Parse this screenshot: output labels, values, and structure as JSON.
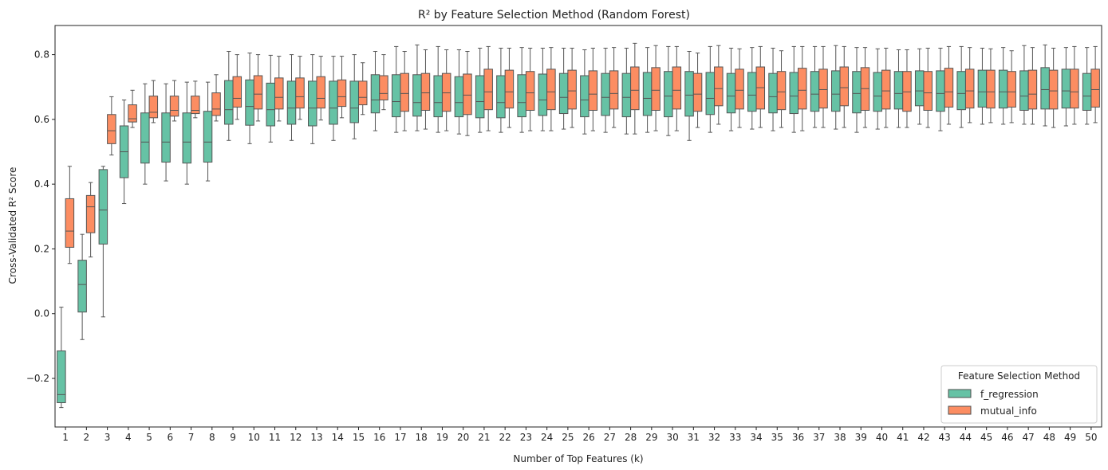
{
  "chart_data": {
    "type": "box",
    "title": "R² by Feature Selection Method (Random Forest)",
    "xlabel": "Number of Top Features (k)",
    "ylabel": "Cross-Validated R² Score",
    "ylim": [
      -0.35,
      0.89
    ],
    "yticks": [
      "−0.2",
      "0.0",
      "0.2",
      "0.4",
      "0.6",
      "0.8"
    ],
    "ytick_values": [
      -0.2,
      0.0,
      0.2,
      0.4,
      0.6,
      0.8
    ],
    "categories": [
      "1",
      "2",
      "3",
      "4",
      "5",
      "6",
      "7",
      "8",
      "9",
      "10",
      "11",
      "12",
      "13",
      "14",
      "15",
      "16",
      "17",
      "18",
      "19",
      "20",
      "21",
      "22",
      "23",
      "24",
      "25",
      "26",
      "27",
      "28",
      "29",
      "30",
      "31",
      "32",
      "33",
      "34",
      "35",
      "36",
      "37",
      "38",
      "39",
      "40",
      "41",
      "42",
      "43",
      "44",
      "45",
      "46",
      "47",
      "48",
      "49",
      "50"
    ],
    "grid": false,
    "legend": {
      "title": "Feature Selection Method",
      "placement": "lower-right"
    },
    "series": [
      {
        "name": "f_regression",
        "color": "#66c2a5",
        "boxes": [
          {
            "whislo": -0.29,
            "q1": -0.275,
            "med": -0.25,
            "q3": -0.115,
            "whishi": 0.02
          },
          {
            "whislo": -0.08,
            "q1": 0.005,
            "med": 0.09,
            "q3": 0.165,
            "whishi": 0.245
          },
          {
            "whislo": -0.01,
            "q1": 0.215,
            "med": 0.32,
            "q3": 0.445,
            "whishi": 0.455
          },
          {
            "whislo": 0.34,
            "q1": 0.42,
            "med": 0.5,
            "q3": 0.58,
            "whishi": 0.66
          },
          {
            "whislo": 0.4,
            "q1": 0.465,
            "med": 0.53,
            "q3": 0.62,
            "whishi": 0.71
          },
          {
            "whislo": 0.41,
            "q1": 0.468,
            "med": 0.53,
            "q3": 0.62,
            "whishi": 0.71
          },
          {
            "whislo": 0.4,
            "q1": 0.465,
            "med": 0.53,
            "q3": 0.62,
            "whishi": 0.715
          },
          {
            "whislo": 0.41,
            "q1": 0.468,
            "med": 0.53,
            "q3": 0.625,
            "whishi": 0.715
          },
          {
            "whislo": 0.535,
            "q1": 0.585,
            "med": 0.63,
            "q3": 0.72,
            "whishi": 0.81
          },
          {
            "whislo": 0.525,
            "q1": 0.582,
            "med": 0.64,
            "q3": 0.722,
            "whishi": 0.805
          },
          {
            "whislo": 0.53,
            "q1": 0.58,
            "med": 0.63,
            "q3": 0.712,
            "whishi": 0.798
          },
          {
            "whislo": 0.535,
            "q1": 0.585,
            "med": 0.635,
            "q3": 0.718,
            "whishi": 0.8
          },
          {
            "whislo": 0.525,
            "q1": 0.58,
            "med": 0.635,
            "q3": 0.718,
            "whishi": 0.8
          },
          {
            "whislo": 0.535,
            "q1": 0.585,
            "med": 0.635,
            "q3": 0.718,
            "whishi": 0.795
          },
          {
            "whislo": 0.54,
            "q1": 0.59,
            "med": 0.635,
            "q3": 0.718,
            "whishi": 0.8
          },
          {
            "whislo": 0.565,
            "q1": 0.62,
            "med": 0.66,
            "q3": 0.738,
            "whishi": 0.81
          },
          {
            "whislo": 0.56,
            "q1": 0.608,
            "med": 0.655,
            "q3": 0.738,
            "whishi": 0.825
          },
          {
            "whislo": 0.565,
            "q1": 0.61,
            "med": 0.652,
            "q3": 0.738,
            "whishi": 0.83
          },
          {
            "whislo": 0.56,
            "q1": 0.608,
            "med": 0.652,
            "q3": 0.735,
            "whishi": 0.825
          },
          {
            "whislo": 0.555,
            "q1": 0.608,
            "med": 0.652,
            "q3": 0.732,
            "whishi": 0.815
          },
          {
            "whislo": 0.56,
            "q1": 0.605,
            "med": 0.655,
            "q3": 0.735,
            "whishi": 0.82
          },
          {
            "whislo": 0.56,
            "q1": 0.605,
            "med": 0.652,
            "q3": 0.735,
            "whishi": 0.82
          },
          {
            "whislo": 0.56,
            "q1": 0.608,
            "med": 0.652,
            "q3": 0.738,
            "whishi": 0.822
          },
          {
            "whislo": 0.565,
            "q1": 0.612,
            "med": 0.66,
            "q3": 0.74,
            "whishi": 0.82
          },
          {
            "whislo": 0.57,
            "q1": 0.618,
            "med": 0.668,
            "q3": 0.742,
            "whishi": 0.82
          },
          {
            "whislo": 0.555,
            "q1": 0.608,
            "med": 0.66,
            "q3": 0.735,
            "whishi": 0.815
          },
          {
            "whislo": 0.56,
            "q1": 0.612,
            "med": 0.668,
            "q3": 0.742,
            "whishi": 0.82
          },
          {
            "whislo": 0.555,
            "q1": 0.608,
            "med": 0.668,
            "q3": 0.742,
            "whishi": 0.82
          },
          {
            "whislo": 0.56,
            "q1": 0.612,
            "med": 0.665,
            "q3": 0.745,
            "whishi": 0.822
          },
          {
            "whislo": 0.55,
            "q1": 0.608,
            "med": 0.672,
            "q3": 0.748,
            "whishi": 0.825
          },
          {
            "whislo": 0.535,
            "q1": 0.61,
            "med": 0.675,
            "q3": 0.748,
            "whishi": 0.81
          },
          {
            "whislo": 0.56,
            "q1": 0.615,
            "med": 0.665,
            "q3": 0.745,
            "whishi": 0.825
          },
          {
            "whislo": 0.565,
            "q1": 0.62,
            "med": 0.672,
            "q3": 0.742,
            "whishi": 0.82
          },
          {
            "whislo": 0.57,
            "q1": 0.625,
            "med": 0.675,
            "q3": 0.745,
            "whishi": 0.822
          },
          {
            "whislo": 0.565,
            "q1": 0.62,
            "med": 0.67,
            "q3": 0.742,
            "whishi": 0.82
          },
          {
            "whislo": 0.56,
            "q1": 0.618,
            "med": 0.672,
            "q3": 0.745,
            "whishi": 0.825
          },
          {
            "whislo": 0.575,
            "q1": 0.625,
            "med": 0.678,
            "q3": 0.748,
            "whishi": 0.825
          },
          {
            "whislo": 0.57,
            "q1": 0.625,
            "med": 0.678,
            "q3": 0.75,
            "whishi": 0.828
          },
          {
            "whislo": 0.56,
            "q1": 0.62,
            "med": 0.68,
            "q3": 0.748,
            "whishi": 0.822
          },
          {
            "whislo": 0.57,
            "q1": 0.625,
            "med": 0.672,
            "q3": 0.745,
            "whishi": 0.818
          },
          {
            "whislo": 0.575,
            "q1": 0.632,
            "med": 0.68,
            "q3": 0.748,
            "whishi": 0.815
          },
          {
            "whislo": 0.585,
            "q1": 0.642,
            "med": 0.688,
            "q3": 0.75,
            "whishi": 0.818
          },
          {
            "whislo": 0.565,
            "q1": 0.625,
            "med": 0.68,
            "q3": 0.75,
            "whishi": 0.82
          },
          {
            "whislo": 0.575,
            "q1": 0.63,
            "med": 0.68,
            "q3": 0.748,
            "whishi": 0.825
          },
          {
            "whislo": 0.585,
            "q1": 0.638,
            "med": 0.685,
            "q3": 0.752,
            "whishi": 0.82
          },
          {
            "whislo": 0.585,
            "q1": 0.635,
            "med": 0.685,
            "q3": 0.752,
            "whishi": 0.822
          },
          {
            "whislo": 0.585,
            "q1": 0.628,
            "med": 0.672,
            "q3": 0.75,
            "whishi": 0.828
          },
          {
            "whislo": 0.58,
            "q1": 0.632,
            "med": 0.692,
            "q3": 0.76,
            "whishi": 0.83
          },
          {
            "whislo": 0.58,
            "q1": 0.635,
            "med": 0.688,
            "q3": 0.755,
            "whishi": 0.822
          },
          {
            "whislo": 0.585,
            "q1": 0.628,
            "med": 0.672,
            "q3": 0.742,
            "whishi": 0.822
          }
        ]
      },
      {
        "name": "mutual_info",
        "color": "#fc8d62",
        "boxes": [
          {
            "whislo": 0.155,
            "q1": 0.205,
            "med": 0.255,
            "q3": 0.355,
            "whishi": 0.455
          },
          {
            "whislo": 0.175,
            "q1": 0.25,
            "med": 0.33,
            "q3": 0.365,
            "whishi": 0.405
          },
          {
            "whislo": 0.49,
            "q1": 0.525,
            "med": 0.565,
            "q3": 0.615,
            "whishi": 0.67
          },
          {
            "whislo": 0.575,
            "q1": 0.592,
            "med": 0.602,
            "q3": 0.645,
            "whishi": 0.69
          },
          {
            "whislo": 0.59,
            "q1": 0.605,
            "med": 0.622,
            "q3": 0.672,
            "whishi": 0.72
          },
          {
            "whislo": 0.595,
            "q1": 0.61,
            "med": 0.628,
            "q3": 0.672,
            "whishi": 0.72
          },
          {
            "whislo": 0.605,
            "q1": 0.618,
            "med": 0.628,
            "q3": 0.672,
            "whishi": 0.718
          },
          {
            "whislo": 0.595,
            "q1": 0.612,
            "med": 0.632,
            "q3": 0.682,
            "whishi": 0.738
          },
          {
            "whislo": 0.6,
            "q1": 0.638,
            "med": 0.665,
            "q3": 0.732,
            "whishi": 0.8
          },
          {
            "whislo": 0.595,
            "q1": 0.632,
            "med": 0.678,
            "q3": 0.735,
            "whishi": 0.8
          },
          {
            "whislo": 0.595,
            "q1": 0.632,
            "med": 0.668,
            "q3": 0.728,
            "whishi": 0.795
          },
          {
            "whislo": 0.6,
            "q1": 0.635,
            "med": 0.67,
            "q3": 0.728,
            "whishi": 0.795
          },
          {
            "whislo": 0.598,
            "q1": 0.635,
            "med": 0.665,
            "q3": 0.732,
            "whishi": 0.795
          },
          {
            "whislo": 0.605,
            "q1": 0.64,
            "med": 0.67,
            "q3": 0.722,
            "whishi": 0.795
          },
          {
            "whislo": 0.615,
            "q1": 0.645,
            "med": 0.668,
            "q3": 0.718,
            "whishi": 0.775
          },
          {
            "whislo": 0.63,
            "q1": 0.66,
            "med": 0.68,
            "q3": 0.735,
            "whishi": 0.8
          },
          {
            "whislo": 0.565,
            "q1": 0.625,
            "med": 0.68,
            "q3": 0.742,
            "whishi": 0.81
          },
          {
            "whislo": 0.57,
            "q1": 0.628,
            "med": 0.682,
            "q3": 0.742,
            "whishi": 0.815
          },
          {
            "whislo": 0.565,
            "q1": 0.625,
            "med": 0.682,
            "q3": 0.742,
            "whishi": 0.815
          },
          {
            "whislo": 0.55,
            "q1": 0.615,
            "med": 0.675,
            "q3": 0.74,
            "whishi": 0.81
          },
          {
            "whislo": 0.565,
            "q1": 0.63,
            "med": 0.685,
            "q3": 0.755,
            "whishi": 0.825
          },
          {
            "whislo": 0.575,
            "q1": 0.635,
            "med": 0.685,
            "q3": 0.752,
            "whishi": 0.82
          },
          {
            "whislo": 0.565,
            "q1": 0.628,
            "med": 0.682,
            "q3": 0.748,
            "whishi": 0.82
          },
          {
            "whislo": 0.565,
            "q1": 0.63,
            "med": 0.685,
            "q3": 0.755,
            "whishi": 0.822
          },
          {
            "whislo": 0.575,
            "q1": 0.632,
            "med": 0.688,
            "q3": 0.752,
            "whishi": 0.82
          },
          {
            "whislo": 0.565,
            "q1": 0.628,
            "med": 0.678,
            "q3": 0.75,
            "whishi": 0.82
          },
          {
            "whislo": 0.575,
            "q1": 0.632,
            "med": 0.68,
            "q3": 0.75,
            "whishi": 0.822
          },
          {
            "whislo": 0.555,
            "q1": 0.63,
            "med": 0.69,
            "q3": 0.762,
            "whishi": 0.835
          },
          {
            "whislo": 0.565,
            "q1": 0.628,
            "med": 0.69,
            "q3": 0.76,
            "whishi": 0.828
          },
          {
            "whislo": 0.565,
            "q1": 0.632,
            "med": 0.69,
            "q3": 0.762,
            "whishi": 0.825
          },
          {
            "whislo": 0.575,
            "q1": 0.625,
            "med": 0.678,
            "q3": 0.742,
            "whishi": 0.805
          },
          {
            "whislo": 0.585,
            "q1": 0.642,
            "med": 0.695,
            "q3": 0.762,
            "whishi": 0.828
          },
          {
            "whislo": 0.575,
            "q1": 0.632,
            "med": 0.69,
            "q3": 0.755,
            "whishi": 0.818
          },
          {
            "whislo": 0.575,
            "q1": 0.632,
            "med": 0.698,
            "q3": 0.762,
            "whishi": 0.825
          },
          {
            "whislo": 0.575,
            "q1": 0.63,
            "med": 0.685,
            "q3": 0.748,
            "whishi": 0.812
          },
          {
            "whislo": 0.565,
            "q1": 0.632,
            "med": 0.69,
            "q3": 0.758,
            "whishi": 0.825
          },
          {
            "whislo": 0.575,
            "q1": 0.635,
            "med": 0.692,
            "q3": 0.755,
            "whishi": 0.825
          },
          {
            "whislo": 0.575,
            "q1": 0.642,
            "med": 0.698,
            "q3": 0.762,
            "whishi": 0.825
          },
          {
            "whislo": 0.575,
            "q1": 0.628,
            "med": 0.695,
            "q3": 0.76,
            "whishi": 0.822
          },
          {
            "whislo": 0.575,
            "q1": 0.632,
            "med": 0.688,
            "q3": 0.752,
            "whishi": 0.82
          },
          {
            "whislo": 0.575,
            "q1": 0.625,
            "med": 0.685,
            "q3": 0.748,
            "whishi": 0.815
          },
          {
            "whislo": 0.575,
            "q1": 0.628,
            "med": 0.682,
            "q3": 0.748,
            "whishi": 0.82
          },
          {
            "whislo": 0.585,
            "q1": 0.638,
            "med": 0.685,
            "q3": 0.758,
            "whishi": 0.825
          },
          {
            "whislo": 0.59,
            "q1": 0.635,
            "med": 0.688,
            "q3": 0.755,
            "whishi": 0.822
          },
          {
            "whislo": 0.59,
            "q1": 0.635,
            "med": 0.685,
            "q3": 0.752,
            "whishi": 0.818
          },
          {
            "whislo": 0.59,
            "q1": 0.638,
            "med": 0.685,
            "q3": 0.748,
            "whishi": 0.812
          },
          {
            "whislo": 0.585,
            "q1": 0.632,
            "med": 0.678,
            "q3": 0.752,
            "whishi": 0.822
          },
          {
            "whislo": 0.575,
            "q1": 0.632,
            "med": 0.688,
            "q3": 0.752,
            "whishi": 0.82
          },
          {
            "whislo": 0.585,
            "q1": 0.635,
            "med": 0.685,
            "q3": 0.755,
            "whishi": 0.825
          },
          {
            "whislo": 0.59,
            "q1": 0.638,
            "med": 0.692,
            "q3": 0.755,
            "whishi": 0.825
          }
        ]
      }
    ]
  }
}
